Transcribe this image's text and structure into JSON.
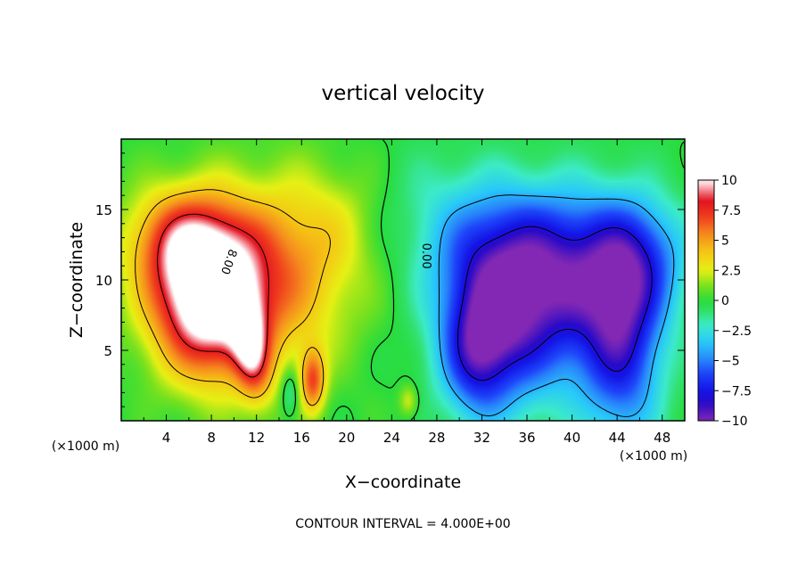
{
  "chart_data": {
    "type": "heatmap",
    "title": "vertical velocity",
    "xlabel": "X−coordinate",
    "ylabel": "Z−coordinate",
    "x_unit_left": "(×1000 m)",
    "x_unit_right": "(×1000 m)",
    "footer": "CONTOUR INTERVAL = 4.000E+00",
    "xlim": [
      0,
      50
    ],
    "ylim": [
      0,
      20
    ],
    "xticks": [
      4,
      8,
      12,
      16,
      20,
      24,
      28,
      32,
      36,
      40,
      44,
      48
    ],
    "yticks": [
      5,
      10,
      15
    ],
    "colorbar": {
      "min": -10,
      "max": 10,
      "ticks": [
        {
          "value": 10,
          "label": "10"
        },
        {
          "value": 7.5,
          "label": "7.5"
        },
        {
          "value": 5,
          "label": "5"
        },
        {
          "value": 2.5,
          "label": "2.5"
        },
        {
          "value": 0,
          "label": "0"
        },
        {
          "value": -2.5,
          "label": "−2.5"
        },
        {
          "value": -5,
          "label": "−5"
        },
        {
          "value": -7.5,
          "label": "−7.5"
        },
        {
          "value": -10,
          "label": "−10"
        }
      ]
    },
    "contour_labels": [
      {
        "text": "8.00",
        "x": 9.5,
        "y": 11.3,
        "angle": -70
      },
      {
        "text": "0.00",
        "x": 27.0,
        "y": 11.7,
        "angle": -90
      }
    ],
    "features": [
      {
        "kind": "updraft",
        "x": 7.5,
        "y": 8.5,
        "sx": 3.5,
        "sy": 3.8,
        "amp": 11,
        "rot": -22
      },
      {
        "kind": "updraft",
        "x": 11.5,
        "y": 5.0,
        "sx": 1.1,
        "sy": 2.5,
        "amp": 6,
        "rot": -10
      },
      {
        "kind": "updraft",
        "x": 13.5,
        "y": 10.5,
        "sx": 5,
        "sy": 4.5,
        "amp": 5
      },
      {
        "kind": "updraft",
        "x": 5.5,
        "y": 13.0,
        "sx": 3.5,
        "sy": 2.5,
        "amp": 5
      },
      {
        "kind": "updraft",
        "x": 17.0,
        "y": 2.8,
        "sx": 0.8,
        "sy": 1.6,
        "amp": 6
      },
      {
        "kind": "updraft",
        "x": 19.0,
        "y": 14.0,
        "sx": 3.5,
        "sy": 3,
        "amp": 1.3
      },
      {
        "kind": "updraft",
        "x": 25.5,
        "y": 1.4,
        "sx": 0.6,
        "sy": 0.8,
        "amp": 2.5
      },
      {
        "kind": "downdraft",
        "x": 33.0,
        "y": 7.5,
        "sx": 3.5,
        "sy": 4.5,
        "amp": -7
      },
      {
        "kind": "downdraft",
        "x": 39.0,
        "y": 9.0,
        "sx": 4.5,
        "sy": 4.5,
        "amp": -6.5
      },
      {
        "kind": "downdraft",
        "x": 44.5,
        "y": 5.5,
        "sx": 2.5,
        "sy": 5,
        "amp": -6.5
      },
      {
        "kind": "downdraft",
        "x": 36.0,
        "y": 12.5,
        "sx": 7,
        "sy": 3,
        "amp": -3
      },
      {
        "kind": "downdraft",
        "x": 31.5,
        "y": 4.5,
        "sx": 2,
        "sy": 3,
        "amp": -4
      },
      {
        "kind": "downdraft",
        "x": 46.0,
        "y": 11.5,
        "sx": 3,
        "sy": 3,
        "amp": -4
      },
      {
        "kind": "downdraft",
        "x": 15.0,
        "y": 2.0,
        "sx": 0.6,
        "sy": 1.2,
        "amp": -2.5
      },
      {
        "kind": "downdraft",
        "x": 28.0,
        "y": 16.0,
        "sx": 4,
        "sy": 3,
        "amp": -1
      }
    ]
  }
}
